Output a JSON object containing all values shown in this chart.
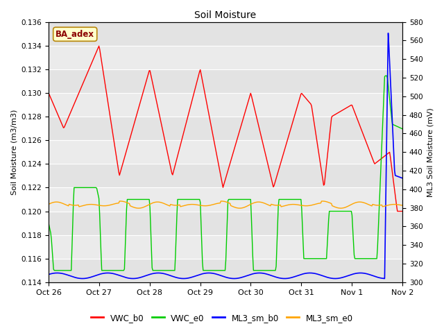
{
  "title": "Soil Moisture",
  "ylabel_left": "Soil Moisture (m3/m3)",
  "ylabel_right": "ML3 Soil Moisture (mV)",
  "ylim_left": [
    0.114,
    0.136
  ],
  "ylim_right": [
    300,
    580
  ],
  "yticks_left": [
    0.114,
    0.116,
    0.118,
    0.12,
    0.122,
    0.124,
    0.126,
    0.128,
    0.13,
    0.132,
    0.134,
    0.136
  ],
  "yticks_right": [
    300,
    320,
    340,
    360,
    380,
    400,
    420,
    440,
    460,
    480,
    500,
    520,
    540,
    560,
    580
  ],
  "xtick_labels": [
    "Oct 26",
    "Oct 27",
    "Oct 28",
    "Oct 29",
    "Oct 30",
    "Oct 31",
    "Nov 1",
    "Nov 2"
  ],
  "annotation_text": "BA_adex",
  "annotation_color": "#8B0000",
  "annotation_bg": "#FFFFCC",
  "annotation_border": "#B8860B",
  "colors": {
    "VWC_b0": "#FF0000",
    "VWC_e0": "#00CC00",
    "ML3_sm_b0": "#0000FF",
    "ML3_sm_e0": "#FFA500"
  },
  "legend_labels": [
    "VWC_b0",
    "VWC_e0",
    "ML3_sm_b0",
    "ML3_sm_e0"
  ],
  "plot_bg": "#EBEBEB",
  "n_points": 500
}
